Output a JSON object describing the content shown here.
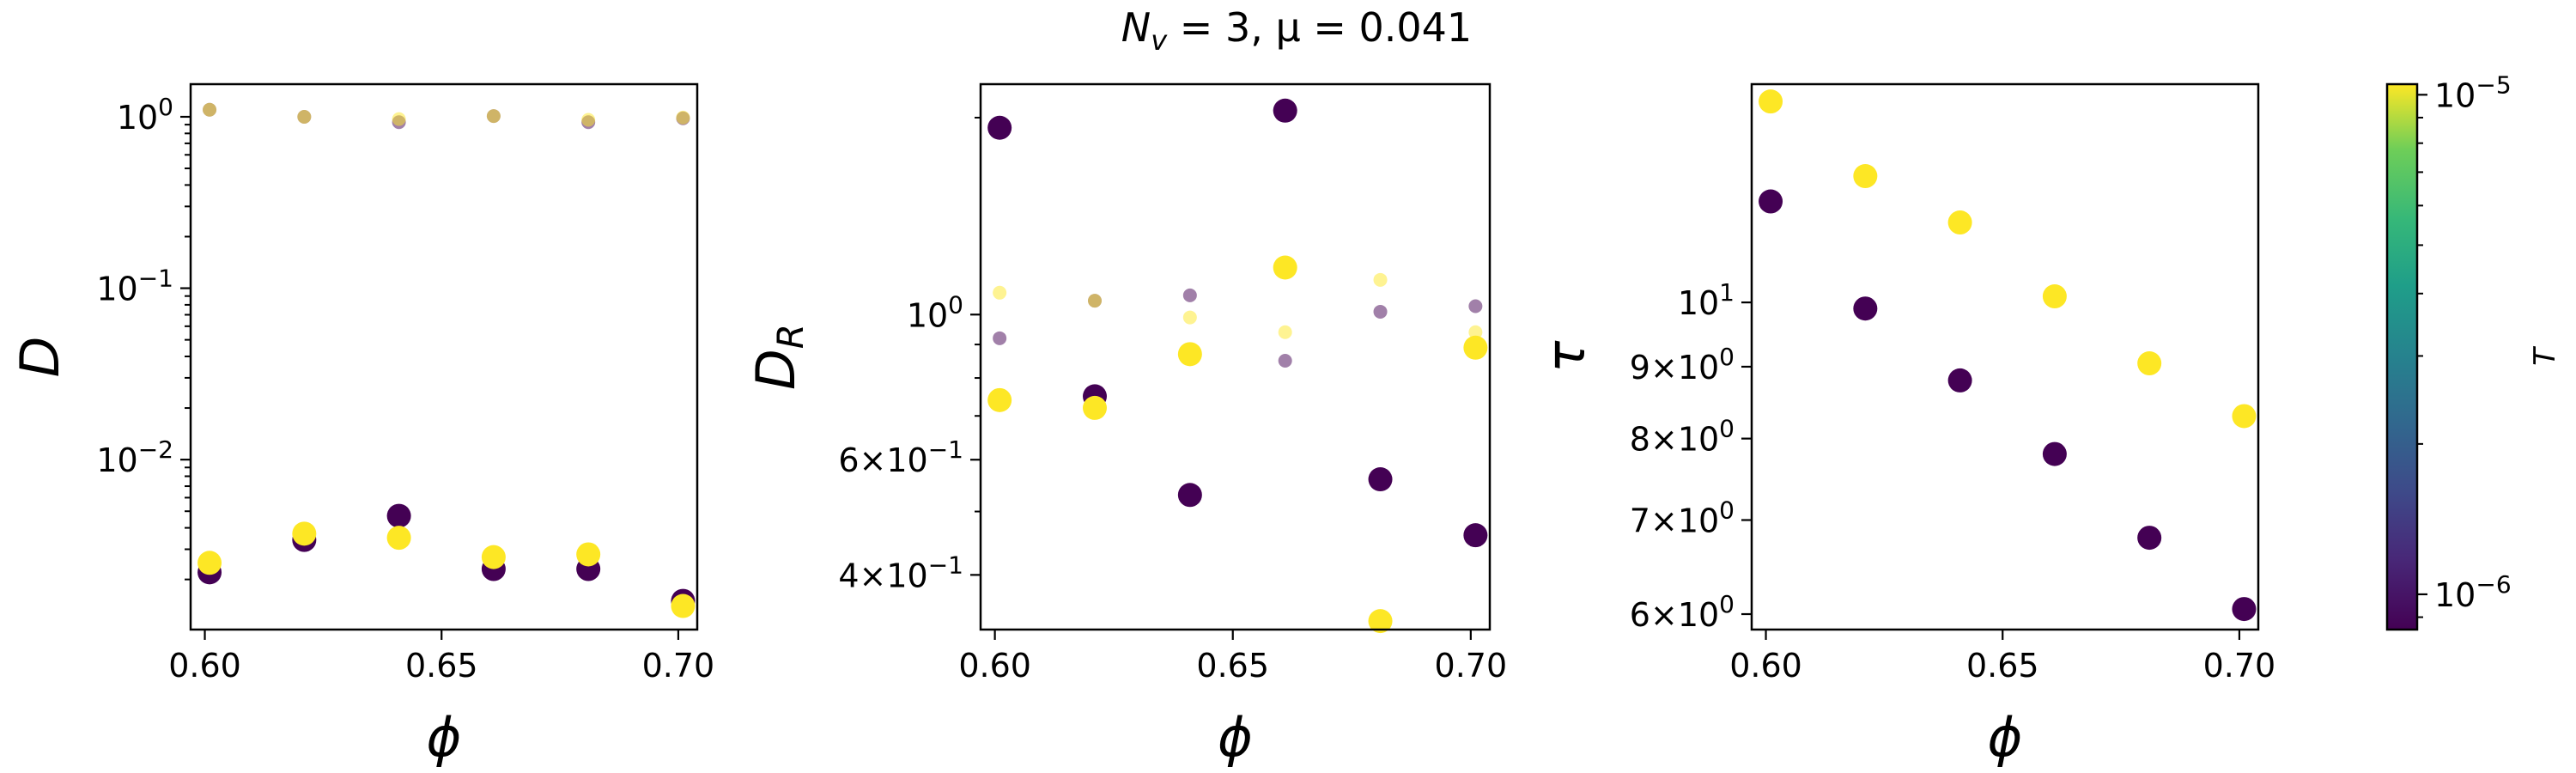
{
  "figure": {
    "suptitle": "N_v = 3, μ = 0.041",
    "colors": {
      "low_T": "#440154",
      "high_T": "#fde725",
      "mid_T": "#b19a3c"
    }
  },
  "chart_data": [
    {
      "type": "scatter",
      "xlabel": "ϕ",
      "ylabel": "D",
      "yscale": "log",
      "xlim": [
        0.597,
        0.704
      ],
      "ylim": [
        0.00102,
        1.55
      ],
      "xticks": [
        0.6,
        0.65,
        0.7
      ],
      "xtick_labels": [
        "0.60",
        "0.65",
        "0.70"
      ],
      "yticks": [
        1,
        0.1,
        0.01
      ],
      "ytick_labels": [
        "10^0",
        "10^−1",
        "10^−2"
      ],
      "series": [
        {
          "T": "1e-6",
          "size": "large",
          "points": [
            [
              0.601,
              0.0022
            ],
            [
              0.621,
              0.0034
            ],
            [
              0.641,
              0.0047
            ],
            [
              0.661,
              0.0023
            ],
            [
              0.681,
              0.0023
            ],
            [
              0.701,
              0.0015
            ]
          ]
        },
        {
          "T": "1e-5",
          "size": "large",
          "points": [
            [
              0.601,
              0.0025
            ],
            [
              0.621,
              0.0037
            ],
            [
              0.641,
              0.0035
            ],
            [
              0.661,
              0.0027
            ],
            [
              0.681,
              0.0028
            ],
            [
              0.701,
              0.0014
            ]
          ]
        },
        {
          "T": "1e-6",
          "size": "small",
          "points": [
            [
              0.601,
              1.1
            ],
            [
              0.621,
              1.0
            ],
            [
              0.641,
              0.93
            ],
            [
              0.661,
              1.01
            ],
            [
              0.681,
              0.93
            ],
            [
              0.701,
              0.98
            ]
          ]
        },
        {
          "T": "1e-5",
          "size": "small",
          "points": [
            [
              0.601,
              1.1
            ],
            [
              0.621,
              1.0
            ],
            [
              0.641,
              0.97
            ],
            [
              0.661,
              1.01
            ],
            [
              0.681,
              0.96
            ],
            [
              0.701,
              0.99
            ]
          ]
        }
      ]
    },
    {
      "type": "scatter",
      "xlabel": "ϕ",
      "ylabel": "D_R",
      "yscale": "log",
      "xlim": [
        0.597,
        0.704
      ],
      "ylim": [
        0.33,
        2.25
      ],
      "xticks": [
        0.6,
        0.65,
        0.7
      ],
      "xtick_labels": [
        "0.60",
        "0.65",
        "0.70"
      ],
      "yticks": [
        1,
        0.6,
        0.4
      ],
      "ytick_labels": [
        "10^0",
        "6×10^−1",
        "4×10^−1"
      ],
      "series": [
        {
          "T": "1e-6",
          "size": "large",
          "points": [
            [
              0.601,
              1.93
            ],
            [
              0.621,
              0.75
            ],
            [
              0.641,
              0.53
            ],
            [
              0.661,
              2.05
            ],
            [
              0.681,
              0.56
            ],
            [
              0.701,
              0.46
            ]
          ]
        },
        {
          "T": "1e-5",
          "size": "large",
          "points": [
            [
              0.601,
              0.74
            ],
            [
              0.621,
              0.72
            ],
            [
              0.641,
              0.87
            ],
            [
              0.661,
              1.18
            ],
            [
              0.681,
              0.34
            ],
            [
              0.701,
              0.89
            ]
          ]
        },
        {
          "T": "1e-6",
          "size": "small",
          "points": [
            [
              0.601,
              0.92
            ],
            [
              0.621,
              1.05
            ],
            [
              0.641,
              1.07
            ],
            [
              0.661,
              0.85
            ],
            [
              0.681,
              1.01
            ],
            [
              0.701,
              1.03
            ]
          ]
        },
        {
          "T": "1e-5",
          "size": "small",
          "points": [
            [
              0.601,
              1.08
            ],
            [
              0.621,
              1.05
            ],
            [
              0.641,
              0.99
            ],
            [
              0.661,
              0.94
            ],
            [
              0.681,
              1.13
            ],
            [
              0.701,
              0.94
            ]
          ]
        }
      ]
    },
    {
      "type": "scatter",
      "xlabel": "ϕ",
      "ylabel": "τ",
      "yscale": "log",
      "xlim": [
        0.597,
        0.704
      ],
      "ylim": [
        5.85,
        14.3
      ],
      "xticks": [
        0.6,
        0.65,
        0.7
      ],
      "xtick_labels": [
        "0.60",
        "0.65",
        "0.70"
      ],
      "yticks": [
        10,
        9,
        8,
        7,
        6
      ],
      "ytick_labels": [
        "10^1",
        "9×10^0",
        "8×10^0",
        "7×10^0",
        "6×10^0"
      ],
      "series": [
        {
          "T": "1e-6",
          "size": "large",
          "points": [
            [
              0.601,
              11.8
            ],
            [
              0.621,
              9.9
            ],
            [
              0.641,
              8.8
            ],
            [
              0.661,
              7.8
            ],
            [
              0.681,
              6.8
            ],
            [
              0.701,
              6.05
            ]
          ]
        },
        {
          "T": "1e-5",
          "size": "large",
          "points": [
            [
              0.601,
              13.9
            ],
            [
              0.621,
              12.3
            ],
            [
              0.641,
              11.4
            ],
            [
              0.661,
              10.1
            ],
            [
              0.681,
              9.05
            ],
            [
              0.701,
              8.3
            ]
          ]
        }
      ]
    }
  ],
  "colorbar": {
    "label": "T",
    "scale": "log",
    "range": [
      8.5e-07,
      1.05e-05
    ],
    "ticks": [
      1e-05,
      1e-06
    ],
    "tick_labels": [
      "10^−5",
      "10^−6"
    ]
  }
}
